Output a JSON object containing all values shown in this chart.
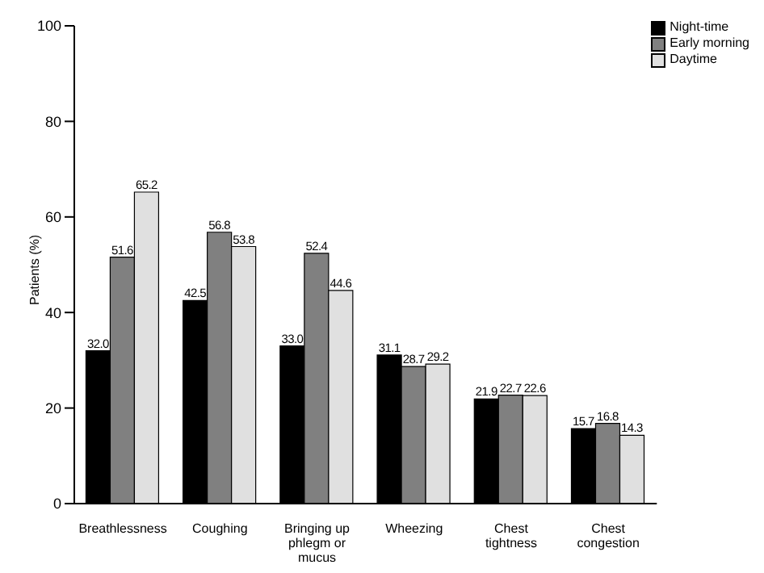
{
  "chart_data": {
    "type": "bar",
    "ylabel": "Patients (%)",
    "categories": [
      "Breathlessness",
      "Coughing",
      "Bringing up phlegm or mucus",
      "Wheezing",
      "Chest tightness",
      "Chest congestion"
    ],
    "series": [
      {
        "name": "Night-time",
        "color": "#000000",
        "values": [
          32.0,
          42.5,
          33.0,
          31.1,
          21.9,
          15.7
        ],
        "value_labels": [
          "32.0",
          "42.5",
          "33.0",
          "31.1",
          "21.9",
          "15.7"
        ]
      },
      {
        "name": "Early morning",
        "color": "#808080",
        "values": [
          51.6,
          56.8,
          52.4,
          28.7,
          22.7,
          16.8
        ],
        "value_labels": [
          "51.6",
          "56.8",
          "52.4",
          "28.7",
          "22.7",
          "16.8"
        ]
      },
      {
        "name": "Daytime",
        "color": "#e0e0e0",
        "values": [
          65.2,
          53.8,
          44.6,
          29.2,
          22.6,
          14.3
        ],
        "value_labels": [
          "65.2",
          "53.8",
          "44.6",
          "29.2",
          "22.6",
          "14.3"
        ]
      }
    ],
    "ylim": [
      0,
      100
    ],
    "yticks": [
      0,
      20,
      40,
      60,
      80,
      100
    ],
    "grid": false,
    "legend": "top right"
  }
}
